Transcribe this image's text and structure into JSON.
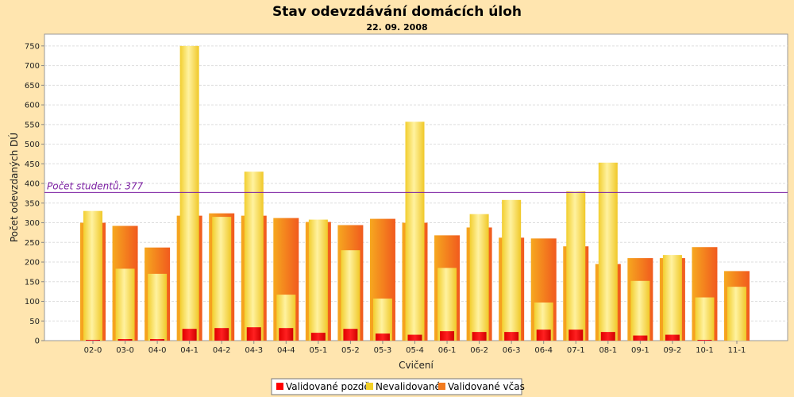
{
  "chart_data": {
    "type": "bar",
    "title": "Stav odevzdávání domácích úloh",
    "subtitle": "22. 09. 2008",
    "xlabel": "Cvičení",
    "ylabel": "Počet odevzdaných DÚ",
    "ylim": [
      0,
      780
    ],
    "yticks": [
      0,
      50,
      100,
      150,
      200,
      250,
      300,
      350,
      400,
      450,
      500,
      550,
      600,
      650,
      700,
      750
    ],
    "grid": true,
    "legend_position": "bottom",
    "categories": [
      "02-0",
      "03-0",
      "04-0",
      "04-1",
      "04-2",
      "04-3",
      "04-4",
      "05-1",
      "05-2",
      "05-3",
      "05-4",
      "06-1",
      "06-2",
      "06-3",
      "06-4",
      "07-1",
      "08-1",
      "09-1",
      "09-2",
      "10-1",
      "11-1"
    ],
    "series": [
      {
        "name": "Validované pozdě",
        "color": "#FF0000",
        "values": [
          2,
          4,
          4,
          30,
          32,
          34,
          32,
          20,
          30,
          18,
          15,
          24,
          22,
          22,
          28,
          28,
          22,
          13,
          15,
          2,
          0
        ]
      },
      {
        "name": "Nevalidované",
        "color": "#F2D028",
        "values": [
          330,
          183,
          170,
          750,
          315,
          430,
          117,
          308,
          230,
          107,
          557,
          185,
          322,
          358,
          97,
          380,
          453,
          152,
          218,
          110,
          137
        ]
      },
      {
        "name": "Validované včas",
        "color": "#F27A1E",
        "values": [
          300,
          292,
          237,
          318,
          324,
          318,
          312,
          302,
          294,
          310,
          300,
          268,
          288,
          262,
          260,
          240,
          195,
          210,
          210,
          238,
          177
        ]
      }
    ],
    "marker": {
      "label": "Počet studentů: 377",
      "value": 377,
      "color": "#7B1FA2"
    }
  }
}
